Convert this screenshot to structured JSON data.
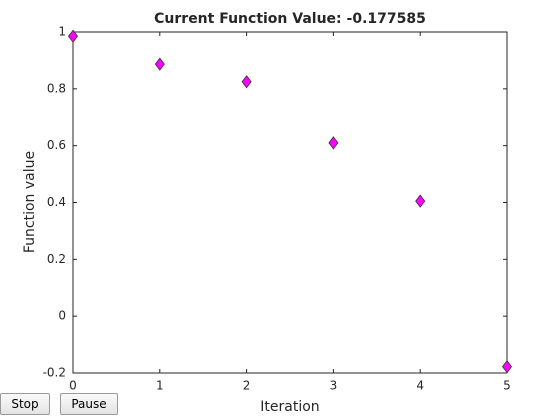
{
  "chart_data": {
    "type": "scatter",
    "title": "Current Function Value: -0.177585",
    "x_label": "Iteration",
    "y_label": "Function value",
    "x": [
      0,
      1,
      2,
      3,
      4,
      5
    ],
    "values": [
      0.985,
      0.887,
      0.825,
      0.61,
      0.405,
      -0.177585
    ],
    "color": "#ff00ff",
    "marker": "diamond",
    "xlim": [
      0,
      5
    ],
    "xticks": [
      0,
      1,
      2,
      3,
      4,
      5
    ],
    "ylim": [
      -0.2,
      1
    ],
    "yticks": [
      -0.2,
      0,
      0.2,
      0.4,
      0.6,
      0.8,
      1
    ],
    "grid": false
  },
  "controls": {
    "stop": "Stop",
    "pause": "Pause"
  }
}
